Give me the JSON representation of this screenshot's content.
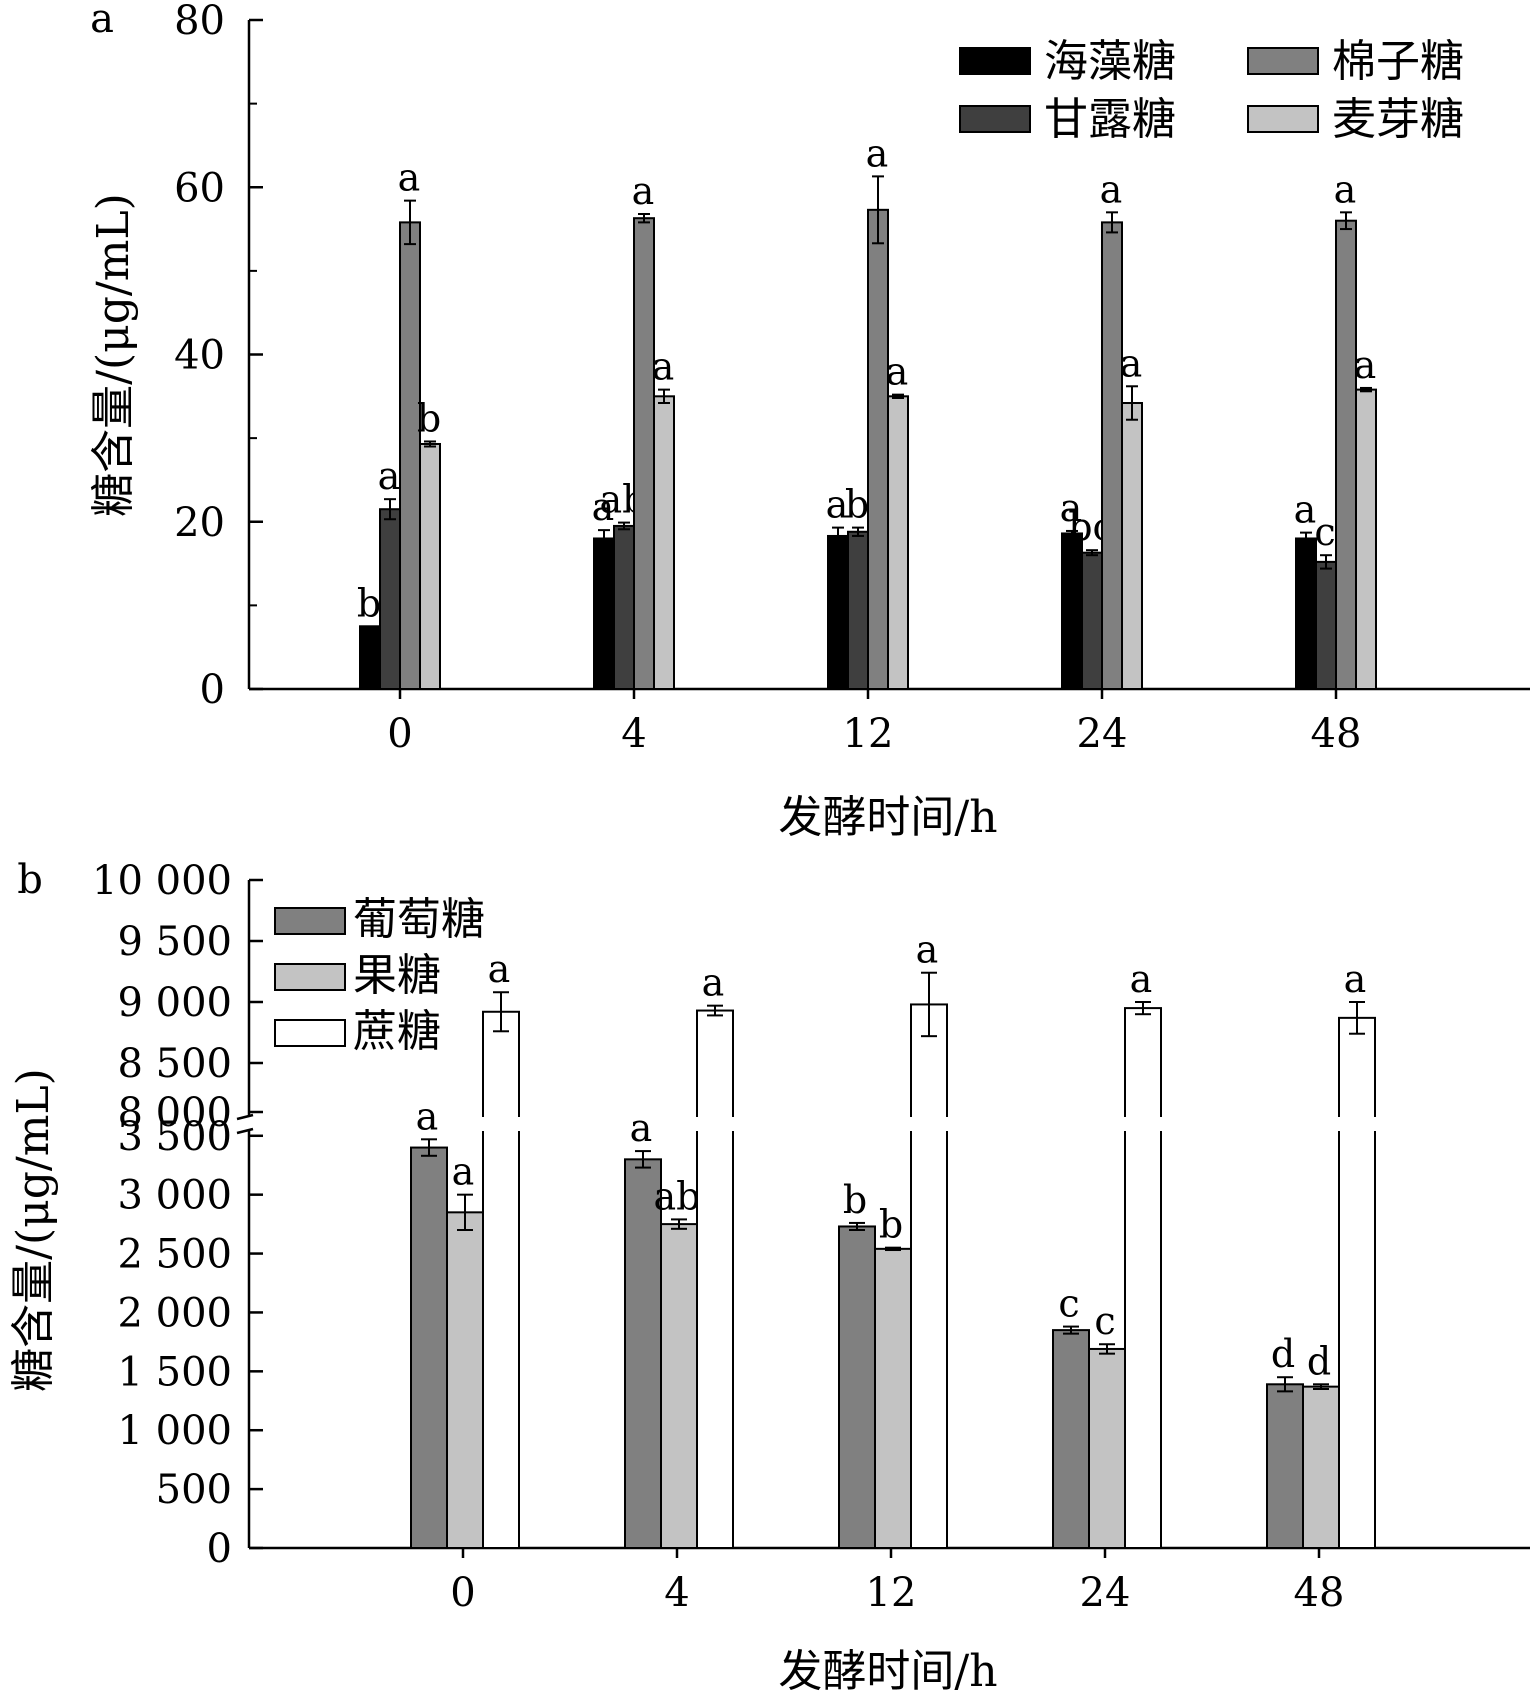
{
  "chart_data": [
    {
      "type": "bar",
      "panel_label": "a",
      "xlabel": "发酵时间/h",
      "ylabel": "糖含量/(μg/mL)",
      "categories": [
        "0",
        "4",
        "12",
        "24",
        "48"
      ],
      "ylim": [
        0,
        80
      ],
      "yticks": [
        "0",
        "20",
        "40",
        "60",
        "80"
      ],
      "legend_position": "top-right",
      "series": [
        {
          "name": "海藻糖",
          "color": "#000000",
          "values": [
            7.5,
            18.0,
            18.3,
            18.6,
            18.0
          ],
          "errors": [
            0,
            1.0,
            1.0,
            0.3,
            0.7
          ],
          "letters": [
            "b",
            "a",
            "a",
            "a",
            "a"
          ]
        },
        {
          "name": "甘露糖",
          "color": "#3f3f3f",
          "values": [
            21.5,
            19.5,
            18.8,
            16.3,
            15.2
          ],
          "errors": [
            1.2,
            0.4,
            0.5,
            0.3,
            0.8
          ],
          "letters": [
            "a",
            "ab",
            "b",
            "bc",
            "c"
          ]
        },
        {
          "name": "棉子糖",
          "color": "#808080",
          "values": [
            55.8,
            56.3,
            57.3,
            55.8,
            56.0
          ],
          "errors": [
            2.6,
            0.5,
            4.0,
            1.2,
            1.0
          ],
          "letters": [
            "a",
            "a",
            "a",
            "a",
            "a"
          ]
        },
        {
          "name": "麦芽糖",
          "color": "#c3c3c3",
          "values": [
            29.3,
            35.0,
            35.0,
            34.2,
            35.8
          ],
          "errors": [
            0.3,
            0.8,
            0.2,
            2.0,
            0.2
          ],
          "letters": [
            "b",
            "a",
            "a",
            "a",
            "a"
          ]
        }
      ]
    },
    {
      "type": "bar",
      "panel_label": "b",
      "xlabel": "发酵时间/h",
      "ylabel": "糖含量/(μg/mL)",
      "categories": [
        "0",
        "4",
        "12",
        "24",
        "48"
      ],
      "ylim": [
        0,
        10000
      ],
      "axis_break": [
        3600,
        8000
      ],
      "yticks": [
        "0",
        "500",
        "1 000",
        "1 500",
        "2 000",
        "2 500",
        "3 000",
        "3 500",
        "8 000",
        "8 500",
        "9 000",
        "9 500",
        "10 000"
      ],
      "legend_position": "top-left",
      "series": [
        {
          "name": "葡萄糖",
          "color": "#808080",
          "values": [
            3400,
            3300,
            2730,
            1850,
            1390
          ],
          "errors": [
            70,
            70,
            30,
            30,
            60
          ],
          "letters": [
            "a",
            "a",
            "b",
            "c",
            "d"
          ]
        },
        {
          "name": "果糖",
          "color": "#c3c3c3",
          "values": [
            2850,
            2750,
            2540,
            1690,
            1370
          ],
          "errors": [
            150,
            40,
            10,
            40,
            20
          ],
          "letters": [
            "a",
            "ab",
            "b",
            "c",
            "d"
          ]
        },
        {
          "name": "蔗糖",
          "color": "#ffffff",
          "values": [
            8920,
            8930,
            8980,
            8950,
            8870
          ],
          "errors": [
            160,
            40,
            260,
            50,
            130
          ],
          "letters": [
            "a",
            "a",
            "a",
            "a",
            "a"
          ]
        }
      ]
    }
  ]
}
